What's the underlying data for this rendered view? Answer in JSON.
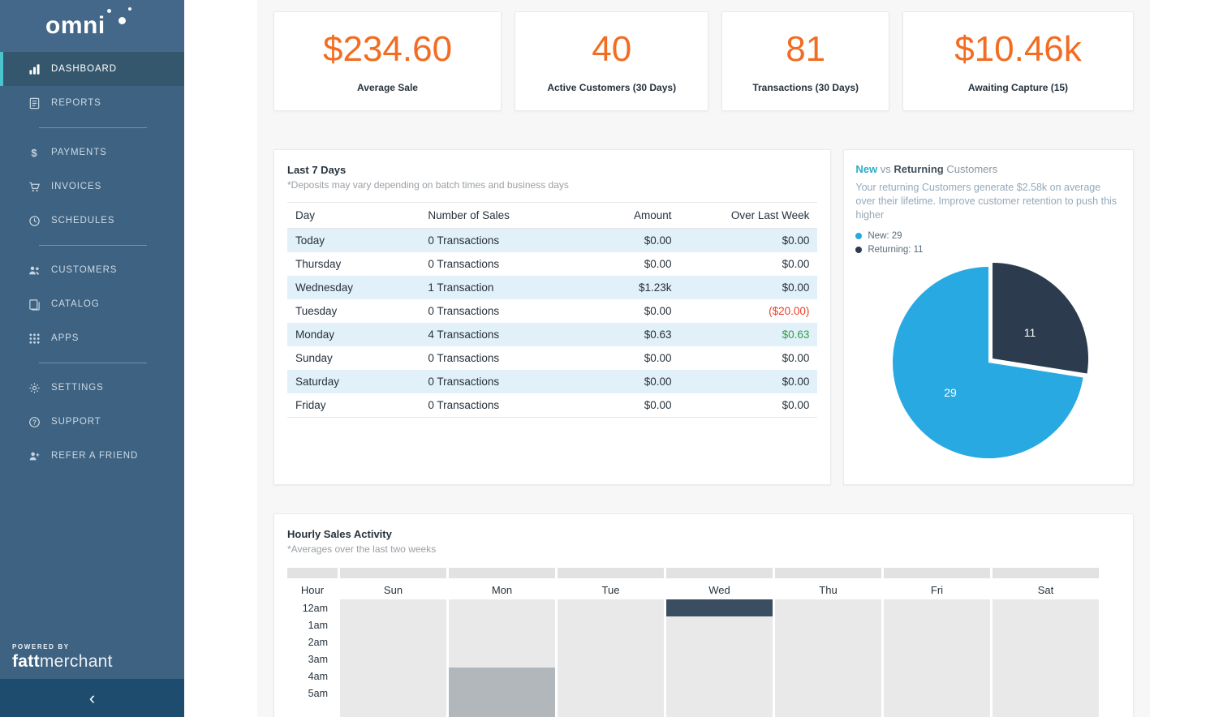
{
  "colors": {
    "accent_orange": "#f26c21",
    "accent_teal": "#4cc4ce",
    "pie_new": "#29a9e1",
    "pie_returning": "#2c3b4d",
    "negative": "#e8402a",
    "positive": "#2f9e44",
    "stripe_blue": "#e2f0f9",
    "heat_low": "#e9e9e9",
    "heat_medium": "#b1b7ba",
    "heat_high": "#3b4d60"
  },
  "sidebar": {
    "logo": "omni",
    "items": [
      {
        "label": "DASHBOARD",
        "icon": "dashboard-icon",
        "active": true
      },
      {
        "label": "REPORTS",
        "icon": "reports-icon"
      },
      {
        "divider": true
      },
      {
        "label": "PAYMENTS",
        "icon": "payments-icon"
      },
      {
        "label": "INVOICES",
        "icon": "invoices-icon"
      },
      {
        "label": "SCHEDULES",
        "icon": "schedules-icon"
      },
      {
        "divider": true
      },
      {
        "label": "CUSTOMERS",
        "icon": "customers-icon"
      },
      {
        "label": "CATALOG",
        "icon": "catalog-icon"
      },
      {
        "label": "APPS",
        "icon": "apps-icon"
      },
      {
        "divider": true
      },
      {
        "label": "SETTINGS",
        "icon": "settings-icon"
      },
      {
        "label": "SUPPORT",
        "icon": "support-icon"
      },
      {
        "label": "REFER A FRIEND",
        "icon": "refer-icon"
      }
    ],
    "powered_by": "POWERED BY",
    "powered_brand_bold": "fatt",
    "powered_brand_light": "merchant",
    "collapse_icon": "‹"
  },
  "stats": [
    {
      "value": "$234.60",
      "label": "Average Sale"
    },
    {
      "value": "40",
      "label": "Active Customers (30 Days)"
    },
    {
      "value": "81",
      "label": "Transactions (30 Days)"
    },
    {
      "value": "$10.46k",
      "label": "Awaiting Capture (15)"
    }
  ],
  "last7days": {
    "title": "Last 7 Days",
    "note": "*Deposits may vary depending on batch times and business days",
    "columns": [
      "Day",
      "Number of Sales",
      "Amount",
      "Over Last Week"
    ],
    "rows": [
      {
        "day": "Today",
        "sales": "0 Transactions",
        "amount": "$0.00",
        "over": "$0.00",
        "over_style": "normal"
      },
      {
        "day": "Thursday",
        "sales": "0 Transactions",
        "amount": "$0.00",
        "over": "$0.00",
        "over_style": "normal"
      },
      {
        "day": "Wednesday",
        "sales": "1 Transaction",
        "amount": "$1.23k",
        "over": "$0.00",
        "over_style": "normal"
      },
      {
        "day": "Tuesday",
        "sales": "0 Transactions",
        "amount": "$0.00",
        "over": "($20.00)",
        "over_style": "negative"
      },
      {
        "day": "Monday",
        "sales": "4 Transactions",
        "amount": "$0.63",
        "over": "$0.63",
        "over_style": "positive"
      },
      {
        "day": "Sunday",
        "sales": "0 Transactions",
        "amount": "$0.00",
        "over": "$0.00",
        "over_style": "normal"
      },
      {
        "day": "Saturday",
        "sales": "0 Transactions",
        "amount": "$0.00",
        "over": "$0.00",
        "over_style": "normal"
      },
      {
        "day": "Friday",
        "sales": "0 Transactions",
        "amount": "$0.00",
        "over": "$0.00",
        "over_style": "normal"
      }
    ]
  },
  "customers_card": {
    "title_new": "New",
    "title_vs": "vs",
    "title_returning": "Returning",
    "title_suffix": "Customers",
    "description": "Your returning Customers generate $2.58k on average over their lifetime. Improve customer retention to push this higher",
    "legend": [
      {
        "label": "New: 29",
        "color": "#29a9e1"
      },
      {
        "label": "Returning: 11",
        "color": "#2c3b4d"
      }
    ]
  },
  "hourly": {
    "title": "Hourly Sales Activity",
    "note": "*Averages over the last two weeks",
    "hour_header": "Hour",
    "days": [
      "Sun",
      "Mon",
      "Tue",
      "Wed",
      "Thu",
      "Fri",
      "Sat"
    ],
    "hours": [
      "12am",
      "1am",
      "2am",
      "3am",
      "4am",
      "5am"
    ]
  },
  "chart_data": [
    {
      "type": "pie",
      "title": "New vs Returning Customers",
      "labels": [
        "New",
        "Returning"
      ],
      "values": [
        29,
        11
      ],
      "colors": [
        "#29a9e1",
        "#2c3b4d"
      ],
      "slice_labels": [
        "29",
        "11"
      ],
      "legend_position": "top-left"
    },
    {
      "type": "heatmap",
      "title": "Hourly Sales Activity",
      "x": [
        "Sun",
        "Mon",
        "Tue",
        "Wed",
        "Thu",
        "Fri",
        "Sat"
      ],
      "y": [
        "12am",
        "1am",
        "2am",
        "3am",
        "4am",
        "5am"
      ],
      "default_level": "low",
      "highlights": [
        {
          "day": "Wed",
          "hour": "12am",
          "level": "high"
        },
        {
          "day": "Mon",
          "hour": "4am",
          "level": "medium"
        },
        {
          "day": "Mon",
          "hour": "5am",
          "level": "medium"
        }
      ]
    }
  ]
}
